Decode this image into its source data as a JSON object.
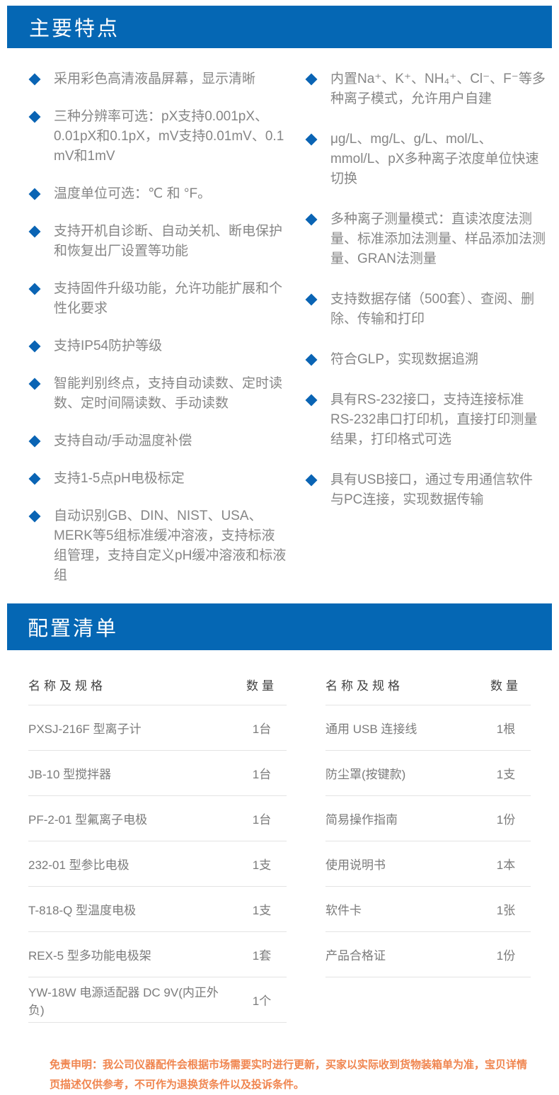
{
  "colors": {
    "accent_blue": "#0567b4",
    "bullet_blue": "#0a64b4",
    "body_gray": "#868686",
    "header_dark": "#404040",
    "divider_gray": "#e4e4e4",
    "disclaimer_orange": "#f0854f"
  },
  "features_section": {
    "title": "主要特点",
    "left_items": [
      "采用彩色高清液晶屏幕，显示清晰",
      "三种分辨率可选：pX支持0.001pX、0.01pX和0.1pX，mV支持0.01mV、0.1 mV和1mV",
      "温度单位可选：℃ 和 °F。",
      "支持开机自诊断、自动关机、断电保护和恢复出厂设置等功能",
      "支持固件升级功能，允许功能扩展和个性化要求",
      "支持IP54防护等级",
      "智能判别终点，支持自动读数、定时读数、定时间隔读数、手动读数",
      "支持自动/手动温度补偿",
      "支持1-5点pH电极标定",
      "自动识别GB、DIN、NIST、USA、MERK等5组标准缓冲溶液，支持标液组管理，支持自定义pH缓冲溶液和标液组"
    ],
    "right_items": [
      "内置Na⁺、K⁺、NH₄⁺、Cl⁻、F⁻等多种离子模式，允许用户自建",
      "μg/L、mg/L、g/L、mol/L、mmol/L、pX多种离子浓度单位快速切换",
      "多种离子测量模式：直读浓度法测量、标准添加法测量、样品添加法测量、GRAN法测量",
      "支持数据存储（500套）、查阅、删除、传输和打印",
      "符合GLP，实现数据追溯",
      "具有RS-232接口，支持连接标准RS-232串口打印机，直接打印测量结果，打印格式可选",
      "具有USB接口，通过专用通信软件与PC连接，实现数据传输"
    ]
  },
  "config_section": {
    "title": "配置清单",
    "left_table": {
      "name_header": "名称及规格",
      "qty_header": "数量",
      "rows": [
        {
          "name": "PXSJ-216F 型离子计",
          "qty": "1台"
        },
        {
          "name": "JB-10 型搅拌器",
          "qty": "1台"
        },
        {
          "name": "PF-2-01 型氟离子电极",
          "qty": "1台"
        },
        {
          "name": "232-01 型参比电极",
          "qty": "1支"
        },
        {
          "name": "T-818-Q 型温度电极",
          "qty": "1支"
        },
        {
          "name": "REX-5 型多功能电极架",
          "qty": "1套"
        },
        {
          "name": "YW-18W 电源适配器 DC 9V(内正外负)",
          "qty": "1个"
        }
      ]
    },
    "right_table": {
      "name_header": "名称及规格",
      "qty_header": "数量",
      "rows": [
        {
          "name": "通用 USB 连接线",
          "qty": "1根"
        },
        {
          "name": "防尘罩(按键款)",
          "qty": "1支"
        },
        {
          "name": "简易操作指南",
          "qty": "1份"
        },
        {
          "name": "使用说明书",
          "qty": "1本"
        },
        {
          "name": "软件卡",
          "qty": "1张"
        },
        {
          "name": "产品合格证",
          "qty": "1份"
        }
      ]
    }
  },
  "disclaimer": "免责申明：我公司仪器配件会根据市场需要实时进行更新，买家以实际收到货物装箱单为准，宝贝详情页描述仅供参考，不可作为退换货条件以及投诉条件。"
}
